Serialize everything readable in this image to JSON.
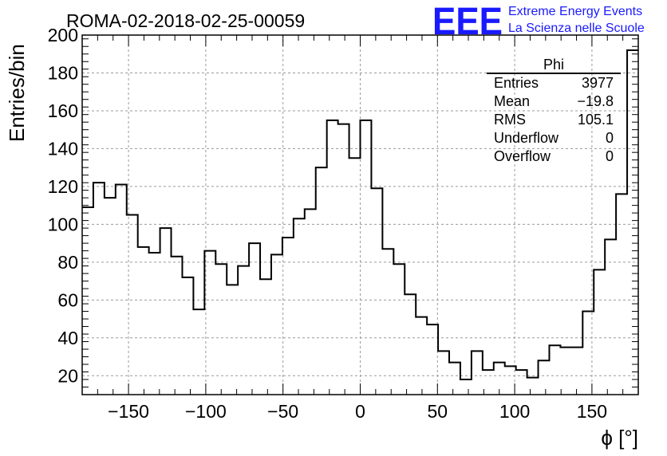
{
  "chart_data": {
    "type": "bar",
    "style": "step-histogram",
    "title": "ROMA-02-2018-02-25-00059",
    "xlabel": "ϕ [°]",
    "ylabel": "Entries/bin",
    "xlim": [
      -180,
      180
    ],
    "ylim": [
      10,
      200
    ],
    "x_tick_labels": [
      "−150",
      "−100",
      "−50",
      "0",
      "50",
      "100",
      "150"
    ],
    "y_tick_labels": [
      "20",
      "40",
      "60",
      "80",
      "100",
      "120",
      "140",
      "160",
      "180",
      "200"
    ],
    "grid": true,
    "bin_width": 7.2,
    "bin_edges_start": -180,
    "values": [
      109,
      122,
      114,
      121,
      105,
      88,
      85,
      98,
      83,
      72,
      55,
      86,
      79,
      68,
      78,
      90,
      71,
      84,
      93,
      103,
      108,
      130,
      155,
      153,
      135,
      155,
      119,
      87,
      79,
      63,
      51,
      47,
      33,
      27,
      18,
      33,
      23,
      27,
      25,
      23,
      19,
      28,
      36,
      35,
      35,
      54,
      76,
      92,
      116,
      192
    ],
    "stats_box": {
      "title": "Phi",
      "rows": [
        {
          "label": "Entries",
          "value": "3977"
        },
        {
          "label": "Mean",
          "value": "−19.8"
        },
        {
          "label": "RMS",
          "value": "105.1"
        },
        {
          "label": "Underflow",
          "value": "0"
        },
        {
          "label": "Overflow",
          "value": "0"
        }
      ]
    }
  },
  "logo": {
    "mark": "EEE",
    "line1": "Extreme Energy Events",
    "line2": "La Scienza nelle Scuole"
  }
}
